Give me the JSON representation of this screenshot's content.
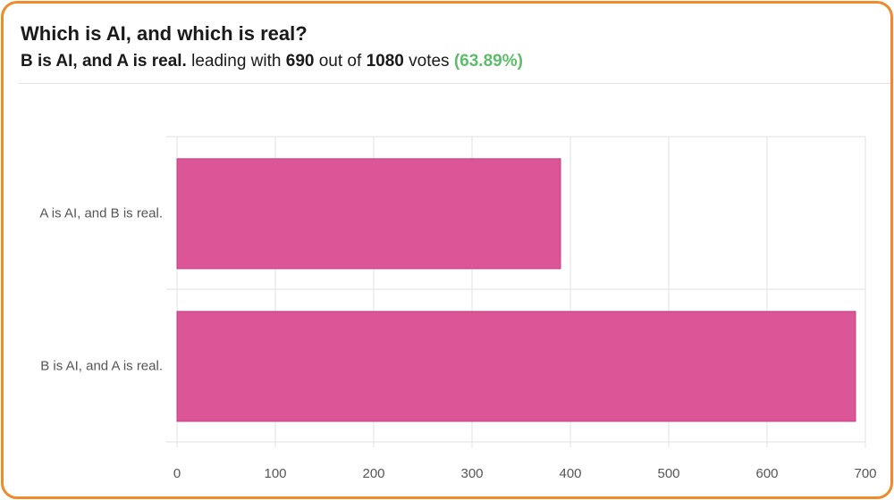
{
  "poll": {
    "question": "Which is AI, and which is real?",
    "leader_option": "B is AI, and A is real.",
    "leading_with_text": "leading with",
    "leader_votes": "690",
    "out_of_text": "out of",
    "total_votes": "1080",
    "votes_text": "votes",
    "leader_percent": "(63.89%)"
  },
  "colors": {
    "bar": "#dc5597",
    "border": "#f08a2c",
    "percent": "#5cbd6a",
    "grid": "#e0e0e0"
  },
  "chart_data": {
    "type": "bar",
    "orientation": "horizontal",
    "categories": [
      "A is AI, and B is real.",
      "B is AI, and A is real."
    ],
    "values": [
      390,
      690
    ],
    "title": "",
    "xlabel": "",
    "ylabel": "",
    "xlim": [
      0,
      700
    ],
    "xticks": [
      "0",
      "100",
      "200",
      "300",
      "400",
      "500",
      "600",
      "700"
    ],
    "grid": true,
    "legend": "none"
  }
}
